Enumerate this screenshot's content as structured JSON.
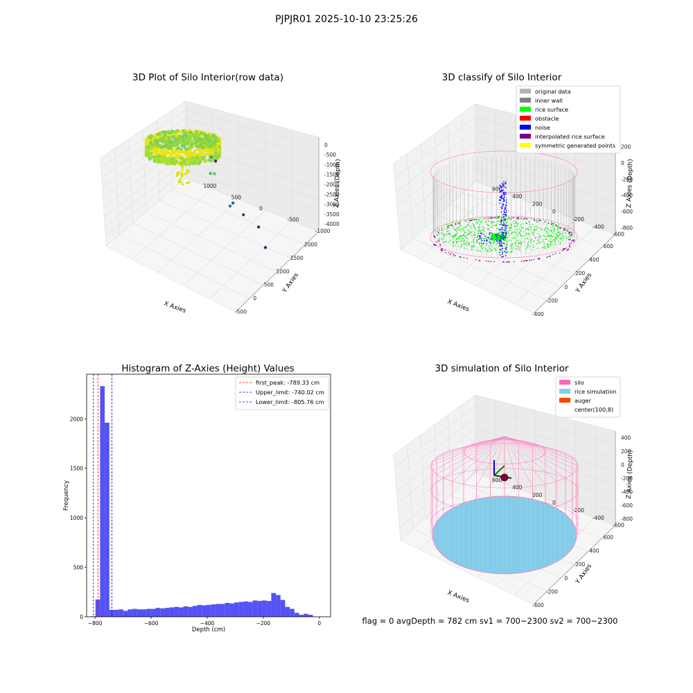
{
  "figure": {
    "suptitle": "PJPJR01 2025-10-10 23:25:26",
    "footer": "flag = 0     avgDepth = 782 cm  sv1 = 700~2300  sv2 = 700~2300"
  },
  "chart_data": [
    {
      "type": "scatter",
      "projection": "3d",
      "title": "3D Plot of Silo Interior(row data)",
      "xlabel": "X Axies",
      "ylabel": "Y Axies",
      "zlabel": "Z Axies (Depth)",
      "xticks": [
        "-500",
        "0",
        "500",
        "1000",
        "1500",
        "2000"
      ],
      "yticks": [
        "-1000",
        "-500",
        "0",
        "500",
        "1000"
      ],
      "zticks": [
        "0",
        "-500",
        "-1000",
        "-1500",
        "-2000",
        "-2500",
        "-3000",
        "-3500",
        "-4000"
      ],
      "xlim": [
        -700,
        2000
      ],
      "ylim": [
        -1100,
        1100
      ],
      "zlim": [
        -4200,
        200
      ],
      "colormap": "viridis",
      "outlier_points": [
        {
          "x": 620,
          "y": -50,
          "z": -1700
        },
        {
          "x": 700,
          "y": 60,
          "z": -1950
        },
        {
          "x": 900,
          "y": 150,
          "z": -1600
        },
        {
          "x": 650,
          "y": -300,
          "z": -2900
        },
        {
          "x": 820,
          "y": -260,
          "z": -3050
        },
        {
          "x": 700,
          "y": -500,
          "z": -3100
        },
        {
          "x": 1900,
          "y": 600,
          "z": -3800
        },
        {
          "x": 1000,
          "y": -600,
          "z": -3950
        },
        {
          "x": 650,
          "y": -900,
          "z": -4000
        }
      ]
    },
    {
      "type": "scatter",
      "projection": "3d",
      "title": "3D classify of Silo Interior",
      "xlabel": "X Axies",
      "ylabel": "Y Axies",
      "zlabel": "Z Axies (Depth)",
      "xticks": [
        "-400",
        "-200",
        "0",
        "200",
        "400",
        "600"
      ],
      "yticks": [
        "-600",
        "-400",
        "-200",
        "0",
        "200",
        "400",
        "600"
      ],
      "zticks": [
        "200",
        "0",
        "-200",
        "-400",
        "-600",
        "-800"
      ],
      "legend_position": "top-right",
      "legend": [
        {
          "label": "original data",
          "color": "#b5b5b5"
        },
        {
          "label": "inner wall",
          "color": "#808080"
        },
        {
          "label": "rice surface",
          "color": "#00ff00"
        },
        {
          "label": "obstacle",
          "color": "#ff0000"
        },
        {
          "label": "noise",
          "color": "#0000ff"
        },
        {
          "label": "interpolated rice surface",
          "color": "#800080"
        },
        {
          "label": "symmetric generated points",
          "color": "#ffff00"
        }
      ]
    },
    {
      "type": "bar",
      "title": "Histogram of Z-Axies (Height) Values",
      "xlabel": "Depth (cm)",
      "ylabel": "Frequency",
      "xlim": [
        -830,
        40
      ],
      "ylim": [
        0,
        2450
      ],
      "xticks": [
        -800,
        -600,
        -400,
        -200,
        0
      ],
      "yticks": [
        0,
        500,
        1000,
        1500,
        2000
      ],
      "bar_color": "#4a4af5",
      "bin_width": 16.5,
      "bin_start": -815,
      "values": [
        5,
        175,
        2330,
        1960,
        70,
        70,
        75,
        60,
        75,
        80,
        75,
        75,
        80,
        80,
        90,
        85,
        90,
        95,
        100,
        95,
        105,
        100,
        110,
        120,
        115,
        120,
        125,
        130,
        130,
        140,
        135,
        145,
        150,
        155,
        150,
        165,
        160,
        165,
        160,
        240,
        220,
        170,
        100,
        80,
        40,
        20,
        30,
        20
      ],
      "reference_lines": [
        {
          "label": "first_peak: -789.33 cm",
          "x": -789.33,
          "color": "#ff0000"
        },
        {
          "label": "Upper_limit: -740.02 cm",
          "x": -740.02,
          "color": "#0000cc"
        },
        {
          "label": "Lower_limit: -805.76 cm",
          "x": -805.76,
          "color": "#0000cc"
        }
      ],
      "legend_position": "top-right"
    },
    {
      "type": "area",
      "projection": "3d",
      "title": "3D simulation of Silo Interior",
      "xlabel": "X Axies",
      "ylabel": "Y Axies",
      "zlabel": "Z Axies (Depth)",
      "xticks": [
        "-400",
        "-200",
        "0",
        "200",
        "400",
        "600"
      ],
      "yticks": [
        "-600",
        "-400",
        "-200",
        "0",
        "200",
        "400",
        "600"
      ],
      "zticks": [
        "400",
        "200",
        "0",
        "-200",
        "-400",
        "-600",
        "-800"
      ],
      "legend_position": "top-right",
      "legend": [
        {
          "label": "silo",
          "color": "#ff69b4"
        },
        {
          "label": "rice simulation",
          "color": "#87ceeb"
        },
        {
          "label": "auger",
          "color": "#ff4500"
        },
        {
          "label": "center(100,8)",
          "color": "#ffffff"
        }
      ]
    }
  ]
}
